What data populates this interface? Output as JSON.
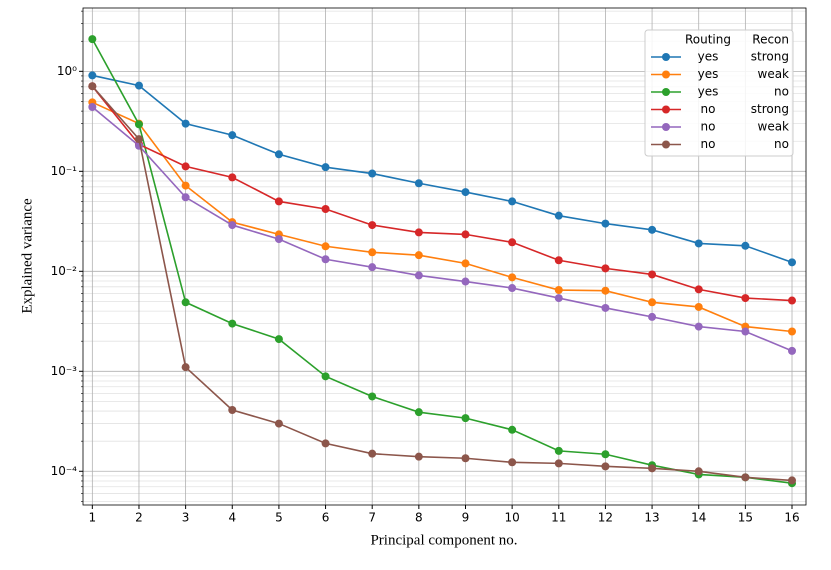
{
  "chart_data": {
    "type": "line",
    "x_label": "Principal component no.",
    "y_label": "Explained variance",
    "x": [
      1,
      2,
      3,
      4,
      5,
      6,
      7,
      8,
      9,
      10,
      11,
      12,
      13,
      14,
      15,
      16
    ],
    "xlim": [
      0.8,
      16.3
    ],
    "xticks": [
      1,
      2,
      3,
      4,
      5,
      6,
      7,
      8,
      9,
      10,
      11,
      12,
      13,
      14,
      15,
      16
    ],
    "ylim": [
      4.6e-05,
      4.3
    ],
    "yscale": "log",
    "yticks": [
      {
        "value": 0.0001,
        "label": "10⁻⁴"
      },
      {
        "value": 0.001,
        "label": "10⁻³"
      },
      {
        "value": 0.01,
        "label": "10⁻²"
      },
      {
        "value": 0.1,
        "label": "10⁻¹"
      },
      {
        "value": 1,
        "label": "10⁰"
      }
    ],
    "yminorticks": [
      5e-05,
      6e-05,
      7e-05,
      8e-05,
      9e-05,
      0.0002,
      0.0003,
      0.0004,
      0.0005,
      0.0006,
      0.0007,
      0.0008,
      0.0009,
      0.002,
      0.003,
      0.004,
      0.005,
      0.006,
      0.007,
      0.008,
      0.009,
      0.02,
      0.03,
      0.04,
      0.05,
      0.06,
      0.07,
      0.08,
      0.09,
      0.2,
      0.3,
      0.4,
      0.5,
      0.6,
      0.7,
      0.8,
      0.9,
      2,
      3,
      4
    ],
    "grid": true,
    "legend_position": "upper right",
    "legend_columns": [
      "Routing",
      "Recon"
    ],
    "series": [
      {
        "routing": "yes",
        "recon": "strong",
        "color": "#1f77b4",
        "values": [
          0.91,
          0.72,
          0.3,
          0.23,
          0.148,
          0.11,
          0.095,
          0.076,
          0.062,
          0.05,
          0.036,
          0.03,
          0.026,
          0.019,
          0.018,
          0.0123
        ]
      },
      {
        "routing": "yes",
        "recon": "weak",
        "color": "#ff7f0e",
        "values": [
          0.49,
          0.3,
          0.072,
          0.031,
          0.0234,
          0.0178,
          0.0155,
          0.0145,
          0.012,
          0.0087,
          0.0065,
          0.0064,
          0.0049,
          0.0044,
          0.0028,
          0.0025
        ]
      },
      {
        "routing": "yes",
        "recon": "no",
        "color": "#2ca02c",
        "values": [
          2.1,
          0.295,
          0.0049,
          0.003,
          0.0021,
          0.00089,
          0.00056,
          0.00039,
          0.00034,
          0.00026,
          0.00016,
          0.000148,
          0.000115,
          9.3e-05,
          8.7e-05,
          7.6e-05
        ]
      },
      {
        "routing": "no",
        "recon": "strong",
        "color": "#d62728",
        "values": [
          0.71,
          0.186,
          0.112,
          0.087,
          0.05,
          0.042,
          0.029,
          0.0245,
          0.0234,
          0.0195,
          0.0129,
          0.0107,
          0.0093,
          0.0066,
          0.0054,
          0.0051
        ]
      },
      {
        "routing": "no",
        "recon": "weak",
        "color": "#9467bd",
        "values": [
          0.44,
          0.18,
          0.055,
          0.029,
          0.021,
          0.0132,
          0.011,
          0.0091,
          0.0079,
          0.0068,
          0.0054,
          0.0043,
          0.0035,
          0.0028,
          0.0025,
          0.0016
        ]
      },
      {
        "routing": "no",
        "recon": "no",
        "color": "#8c564b",
        "values": [
          0.71,
          0.21,
          0.0011,
          0.00041,
          0.0003,
          0.00019,
          0.00015,
          0.00014,
          0.000135,
          0.000123,
          0.00012,
          0.000112,
          0.000107,
          0.0001,
          8.7e-05,
          8.1e-05
        ]
      }
    ]
  }
}
